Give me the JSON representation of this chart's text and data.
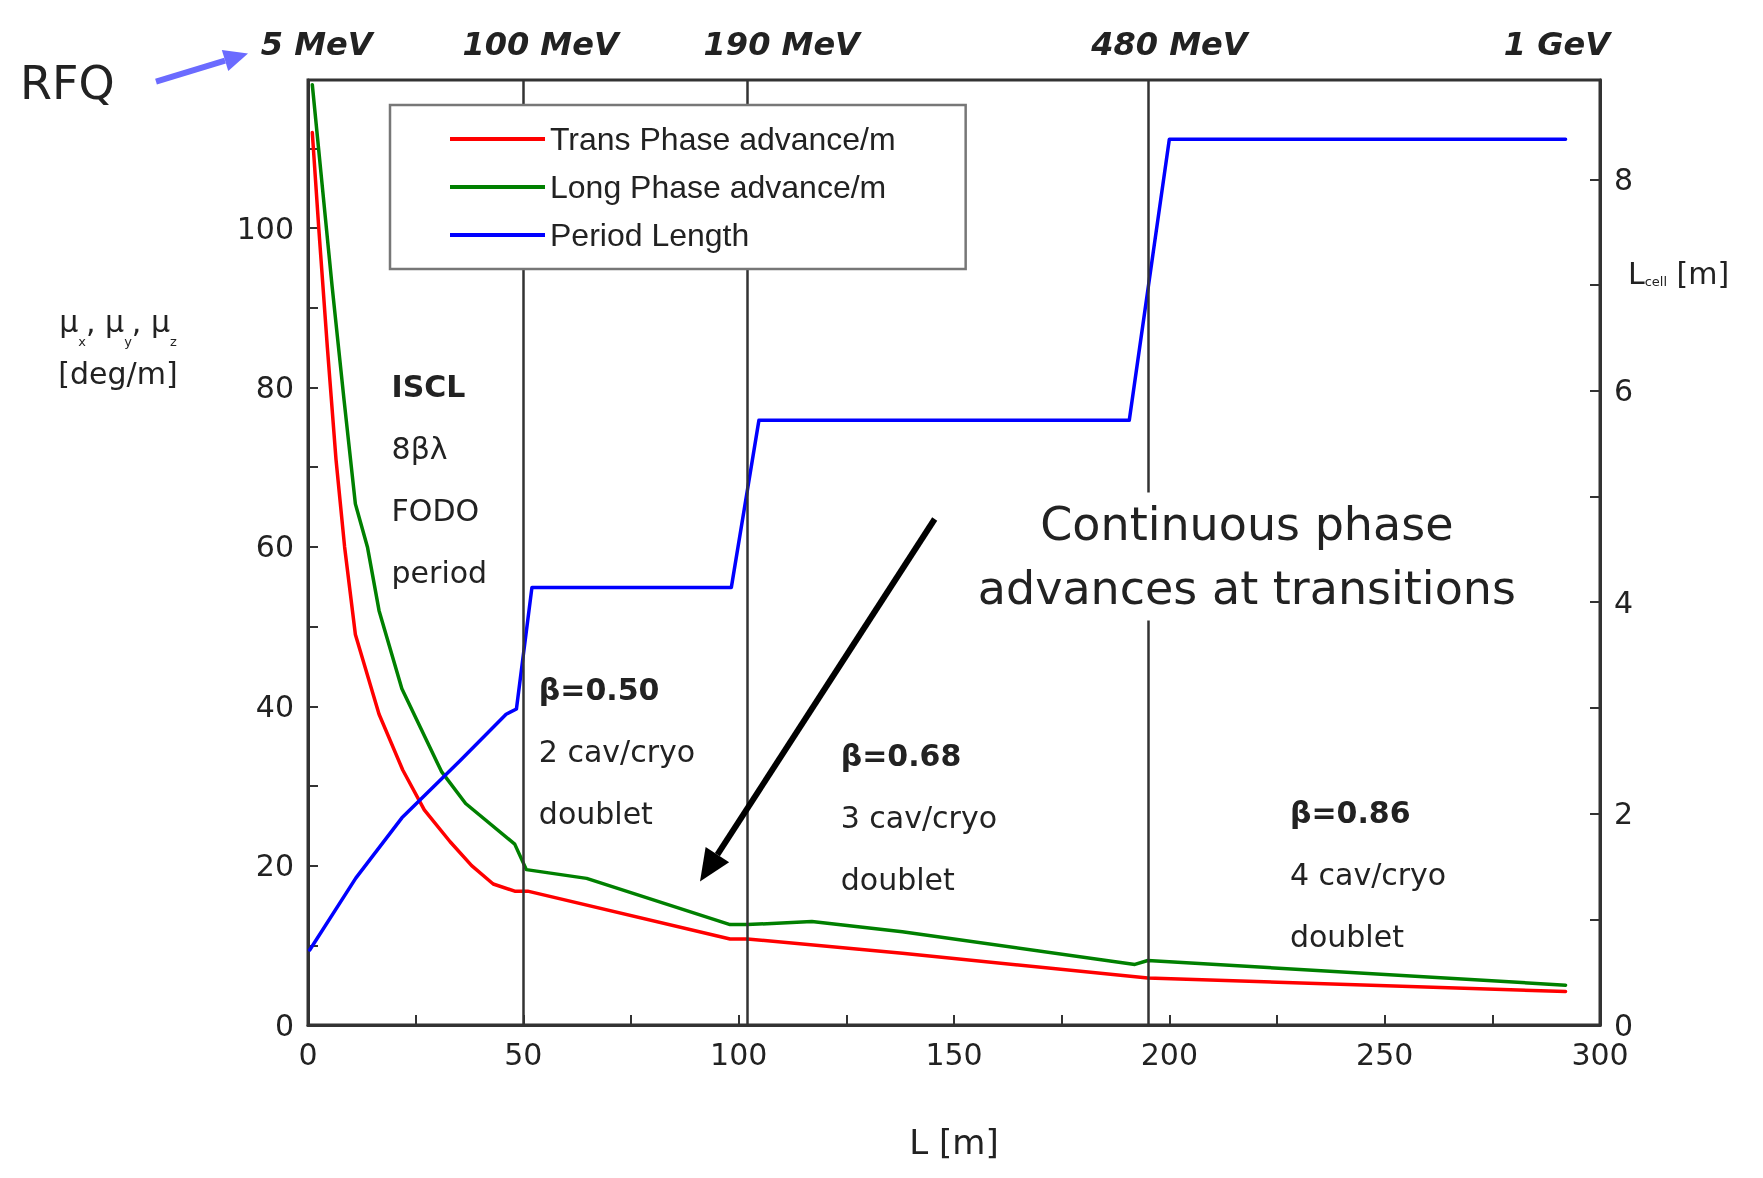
{
  "chart_data": {
    "type": "line",
    "xlabel": "L [m]",
    "ylabel": "μ$_{x}$, μ$_{y}$, μ$_{z}$\n[deg/m]",
    "y2label": "L$_{cell}$ [m]",
    "xlim": [
      0,
      300
    ],
    "xticks": [
      0,
      {
        "value": 25,
        "label": null
      },
      50,
      {
        "value": 75,
        "label": null
      },
      100,
      {
        "value": 125,
        "label": null
      },
      150,
      {
        "value": 175,
        "label": null
      },
      200,
      {
        "value": 225,
        "label": null
      },
      250,
      {
        "value": 275,
        "label": null
      },
      300
    ],
    "ylim": [
      0,
      118.6
    ],
    "yticks": [
      0,
      {
        "value": 10,
        "label": null
      },
      20,
      {
        "value": 30,
        "label": null
      },
      40,
      {
        "value": 50,
        "label": null
      },
      60,
      {
        "value": 70,
        "label": null
      },
      80,
      {
        "value": 90,
        "label": null
      },
      100,
      {
        "value": 110,
        "label": null
      }
    ],
    "y2lim": [
      0,
      8.94
    ],
    "y2ticks": [
      0,
      {
        "value": 1,
        "label": null
      },
      2,
      {
        "value": 3,
        "label": null
      },
      4,
      {
        "value": 5,
        "label": null
      },
      6,
      {
        "value": 7,
        "label": null
      },
      8
    ],
    "grid": false,
    "legend": "top left",
    "marker": "none",
    "line_style": "solid",
    "series": [
      {
        "name": "Trans Phase advance/m",
        "color": "#ff0000",
        "x": [
          1,
          2.5,
          4.5,
          6.5,
          8.5,
          11,
          16.5,
          22,
          27,
          33,
          38,
          43,
          48,
          51,
          98,
          102,
          138,
          195,
          292
        ],
        "values": [
          112,
          100,
          85,
          71,
          60,
          49,
          39,
          32,
          27,
          23,
          20,
          17.7,
          16.8,
          16.8,
          10.8,
          10.8,
          9.0,
          5.9,
          4.2
        ]
      },
      {
        "name": "Long Phase advance/m",
        "color": "#008000",
        "x": [
          1,
          3,
          5.6,
          8.4,
          11,
          13.8,
          16.5,
          21.8,
          31,
          36.6,
          48,
          50.7,
          64.7,
          98,
          102,
          117,
          138,
          192,
          195,
          292
        ],
        "values": [
          118,
          107,
          92.7,
          78.3,
          65.4,
          60,
          52,
          42.2,
          31.8,
          27.8,
          22.7,
          19.5,
          18.4,
          12.6,
          12.6,
          13.0,
          11.7,
          7.6,
          8.1,
          5.0
        ]
      },
      {
        "name": "Period Length",
        "color": "#0000ff",
        "axis": "y2",
        "x": [
          0.4,
          11.1,
          21.8,
          35.3,
          46,
          48.4,
          52,
          98.3,
          104.7,
          190.7,
          200,
          292
        ],
        "values": [
          0.71,
          1.39,
          1.96,
          2.5,
          2.94,
          2.99,
          4.14,
          4.14,
          5.72,
          5.72,
          8.38,
          8.38
        ]
      }
    ],
    "ref_lines": [
      {
        "axis": "x",
        "value": 50
      },
      {
        "axis": "x",
        "value": 102
      },
      {
        "axis": "x",
        "value": 195
      }
    ],
    "annotations": [
      "5 MeV",
      "100 MeV",
      "190 MeV",
      "480 MeV",
      "1 GeV",
      "RFQ",
      "ISCL\n8βλ\nFODO\nperiod",
      "β=0.50\n2 cav/cryo\ndoublet",
      "β=0.68\n3 cav/cryo\ndoublet",
      "β=0.86\n4 cav/cryo\ndoublet",
      "Continuous phase\nadvances at transitions"
    ]
  }
}
